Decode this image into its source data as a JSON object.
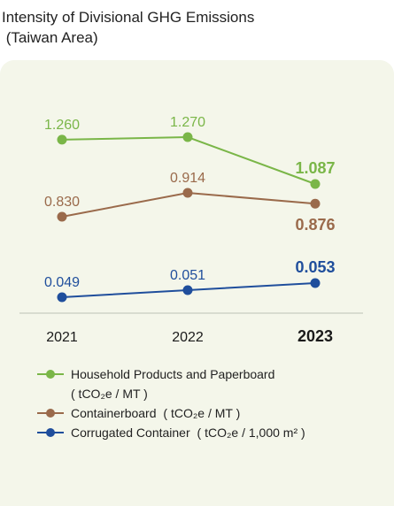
{
  "title_line1": "Intensity of Divisional GHG Emissions",
  "title_line2": " (Taiwan Area)",
  "chart_data": {
    "type": "line",
    "x": [
      "2021",
      "2022",
      "2023"
    ],
    "highlight_category": "2023",
    "grid": false,
    "legend_position": "bottom",
    "series": [
      {
        "name": "Household Products and Paperboard",
        "unit": "( tCO₂e / MT )",
        "values": [
          1.26,
          1.27,
          1.087
        ],
        "labels": [
          "1.260",
          "1.270",
          "1.087"
        ],
        "color": "#7ab648"
      },
      {
        "name": "Containerboard",
        "unit": "( tCO₂e / MT )",
        "values": [
          0.83,
          0.914,
          0.876
        ],
        "labels": [
          "0.830",
          "0.914",
          "0.876"
        ],
        "color": "#9a6a4b"
      },
      {
        "name": "Corrugated Container",
        "unit": "( tCO₂e / 1,000 m² )",
        "values": [
          0.049,
          0.051,
          0.053
        ],
        "labels": [
          "0.049",
          "0.051",
          "0.053"
        ],
        "color": "#1f4e9c"
      }
    ]
  }
}
